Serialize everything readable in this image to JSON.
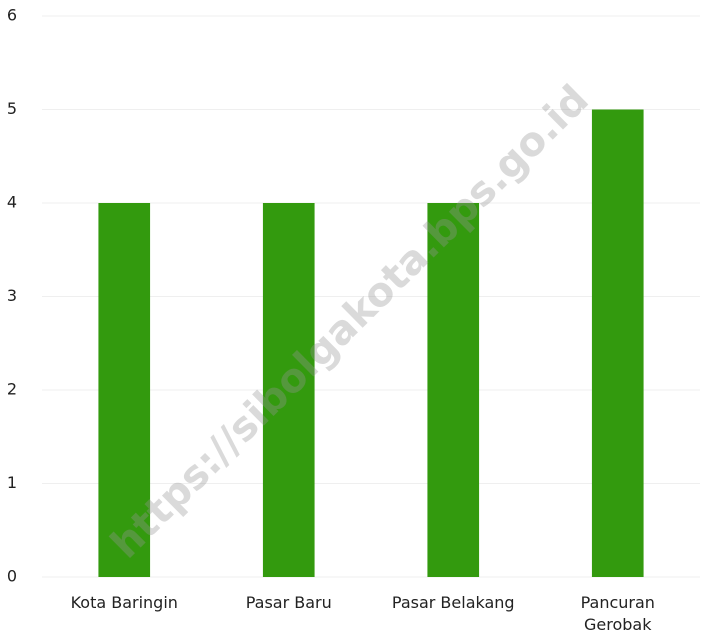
{
  "chart_data": {
    "type": "bar",
    "categories": [
      "Kota Baringin",
      "Pasar Baru",
      "Pasar Belakang",
      "Pancuran\nGerobak"
    ],
    "values": [
      4,
      4,
      4,
      5
    ],
    "color": "#339a0e",
    "ylim": [
      0,
      6
    ],
    "yticks": [
      0,
      1,
      2,
      3,
      4,
      5,
      6
    ],
    "grid": true,
    "watermark": "https://sibolgakota.bps.go.id"
  }
}
